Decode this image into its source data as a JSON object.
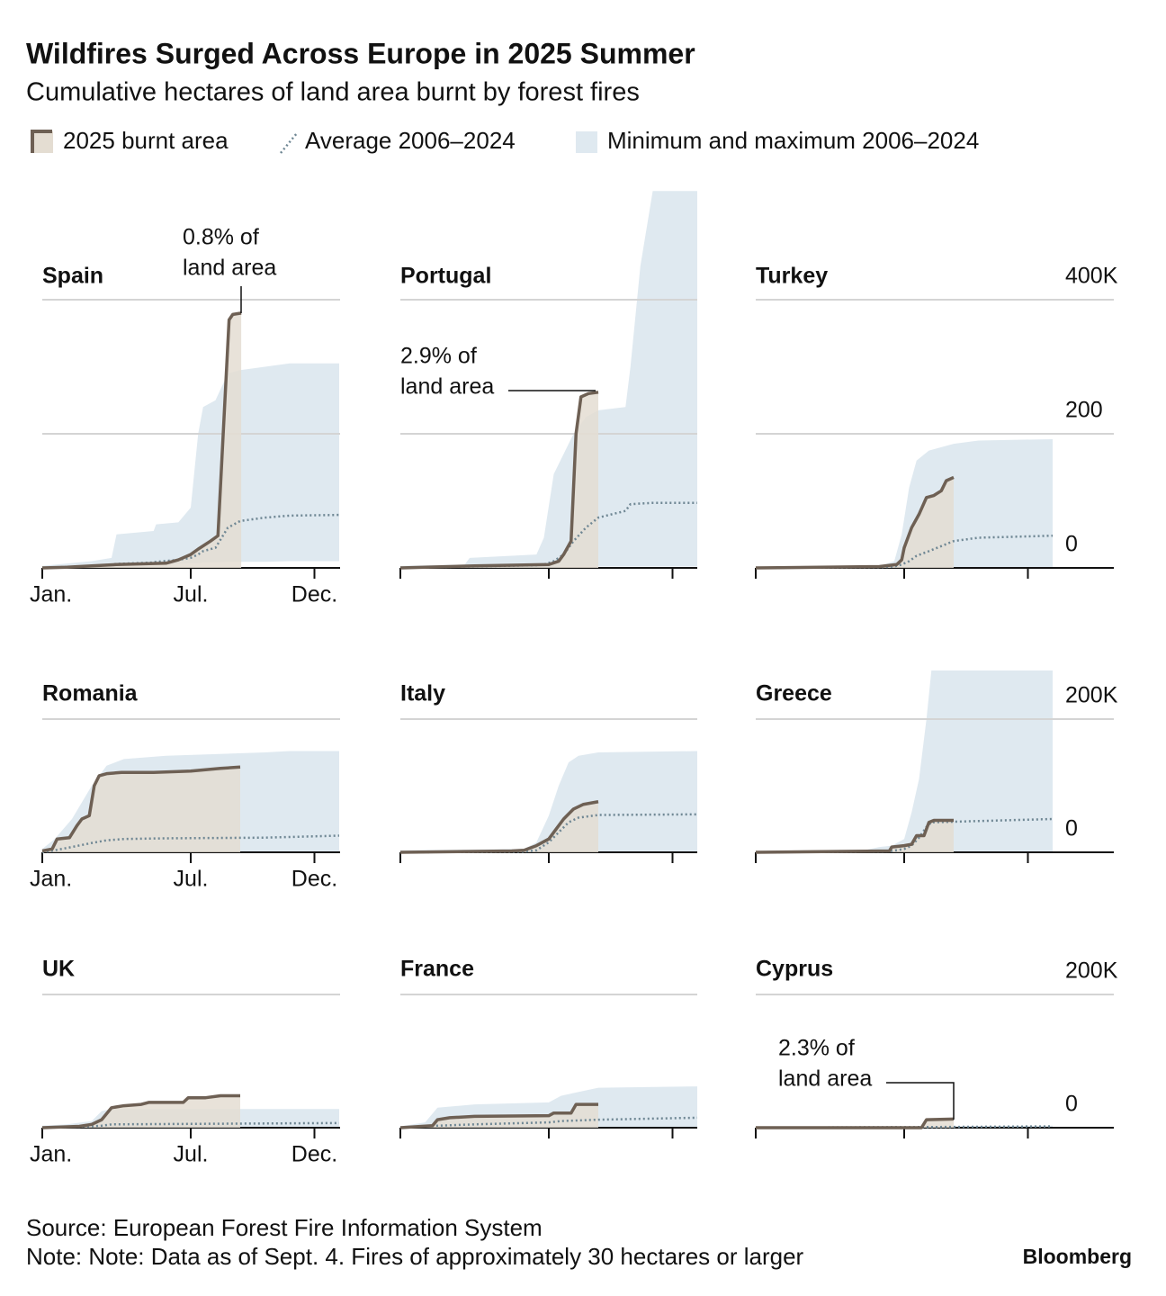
{
  "chart_data": {
    "type": "line",
    "title": "Wildfires Surged Across Europe in 2025 Summer",
    "subtitle": "Cumulative hectares of land area burnt by forest fires",
    "series": [
      {
        "name": "2025 burnt area",
        "color": "#6e6054",
        "fill": "#e4ddd2"
      },
      {
        "name": "Average 2006–2024",
        "color": "#6f8794"
      },
      {
        "name": "Minimum and maximum 2006–2024",
        "color": "#dfe9f0"
      }
    ],
    "xlim": [
      0,
      12
    ],
    "xticks": [
      {
        "value": 0,
        "label": "Jan."
      },
      {
        "value": 6,
        "label": "Jul."
      },
      {
        "value": 11,
        "label": "Dec."
      }
    ],
    "rows": [
      {
        "ylim": [
          0,
          400000
        ],
        "yticks": [
          0,
          {
            "value": 200000,
            "label": "200"
          },
          {
            "value": 400000,
            "label": "400K"
          }
        ],
        "panels": [
          {
            "name": "Spain",
            "annotation": [
              "0.8% of",
              "land area"
            ],
            "x": [
              0,
              1,
              2,
              3,
              4,
              5,
              5.5,
              6,
              6.3,
              6.8,
              7.1,
              7.55,
              7.7,
              8.04
            ],
            "values": [
              0,
              1000,
              3000,
              5000,
              6000,
              7000,
              12000,
              20000,
              28000,
              40000,
              48000,
              370000,
              378000,
              380000
            ],
            "hist_x": [
              0,
              2,
              2.8,
              3,
              4.5,
              4.6,
              5.5,
              6,
              6.3,
              6.5,
              7,
              7.5,
              8,
              9,
              10,
              12
            ],
            "max": [
              3000,
              10000,
              15000,
              50000,
              55000,
              65000,
              68000,
              90000,
              200000,
              240000,
              250000,
              290000,
              295000,
              300000,
              305000,
              305000
            ],
            "min": [
              0,
              2000,
              3000,
              4000,
              5000,
              5000,
              6000,
              7000,
              7000,
              8000,
              8000,
              9000,
              9000,
              9000,
              10000,
              10000
            ],
            "average": [
              0,
              3000,
              5000,
              6000,
              8000,
              9000,
              12000,
              15000,
              20000,
              25000,
              30000,
              60000,
              70000,
              75000,
              78000,
              79000
            ]
          },
          {
            "name": "Portugal",
            "annotation": [
              "2.9% of",
              "land area"
            ],
            "x": [
              0,
              3,
              6,
              6.4,
              6.6,
              6.9,
              7.1,
              7.3,
              7.6,
              8
            ],
            "values": [
              0,
              3000,
              5000,
              10000,
              20000,
              40000,
              200000,
              255000,
              260000,
              262000
            ],
            "hist_x": [
              0,
              2.6,
              2.8,
              5.5,
              5.8,
              6.2,
              6.6,
              7,
              7.5,
              8,
              9.1,
              9.3,
              9.7,
              10.2,
              12
            ],
            "max": [
              3000,
              5000,
              15000,
              20000,
              45000,
              140000,
              170000,
              200000,
              225000,
              235000,
              240000,
              300000,
              450000,
              562000,
              562000
            ],
            "min": [
              0,
              1000,
              1000,
              1000,
              1000,
              1000,
              2000,
              2000,
              2000,
              2000,
              2000,
              2000,
              2000,
              2000,
              2000
            ],
            "average": [
              0,
              2000,
              2000,
              4000,
              5000,
              10000,
              20000,
              40000,
              60000,
              75000,
              85000,
              95000,
              96000,
              97000,
              97000
            ]
          },
          {
            "name": "Turkey",
            "x": [
              0,
              5,
              5.7,
              5.9,
              6,
              6.3,
              6.6,
              6.9,
              7.2,
              7.5,
              7.7,
              8
            ],
            "values": [
              0,
              2000,
              5000,
              12000,
              30000,
              60000,
              80000,
              105000,
              108000,
              115000,
              130000,
              135000
            ],
            "hist_x": [
              0,
              5,
              5.6,
              5.9,
              6.2,
              6.5,
              7,
              8,
              9,
              12
            ],
            "max": [
              1000,
              3000,
              10000,
              50000,
              120000,
              160000,
              175000,
              185000,
              190000,
              192000
            ],
            "min": [
              0,
              0,
              0,
              0,
              0,
              0,
              0,
              0,
              0,
              0
            ],
            "average": [
              0,
              1000,
              2000,
              5000,
              10000,
              18000,
              25000,
              40000,
              45000,
              48000
            ]
          }
        ]
      },
      {
        "ylim": [
          0,
          200000
        ],
        "yticks": [
          0,
          {
            "value": 200000,
            "label": "200K"
          }
        ],
        "panels": [
          {
            "name": "Romania",
            "x": [
              0,
              0.4,
              0.6,
              1.1,
              1.4,
              1.6,
              1.9,
              2.1,
              2.3,
              2.6,
              3.2,
              4.5,
              6,
              6.6,
              7.2,
              8
            ],
            "values": [
              2000,
              5000,
              20000,
              22000,
              40000,
              50000,
              55000,
              100000,
              115000,
              118000,
              120000,
              120000,
              122000,
              124000,
              126000,
              128000
            ],
            "hist_x": [
              0,
              0.5,
              1.2,
              2,
              2.6,
              3.3,
              5,
              9,
              10,
              12
            ],
            "max": [
              5000,
              20000,
              50000,
              100000,
              130000,
              140000,
              145000,
              150000,
              152000,
              152000
            ],
            "min": [
              0,
              0,
              0,
              0,
              0,
              0,
              0,
              0,
              0,
              0
            ],
            "average": [
              0,
              3000,
              8000,
              14000,
              18000,
              20000,
              21000,
              22000,
              23000,
              25000
            ]
          },
          {
            "name": "Italy",
            "x": [
              0,
              4.5,
              5,
              5.5,
              6,
              6.3,
              6.6,
              7,
              7.4,
              8
            ],
            "values": [
              0,
              2000,
              3000,
              10000,
              20000,
              35000,
              50000,
              65000,
              72000,
              76000
            ],
            "hist_x": [
              0,
              5,
              5.5,
              6,
              6.4,
              6.8,
              7.2,
              8,
              12
            ],
            "max": [
              3000,
              5000,
              15000,
              55000,
              100000,
              135000,
              145000,
              150000,
              152000
            ],
            "min": [
              0,
              0,
              0,
              0,
              0,
              0,
              0,
              0,
              0
            ],
            "average": [
              0,
              1000,
              3000,
              15000,
              30000,
              45000,
              52000,
              56000,
              57000
            ]
          },
          {
            "name": "Greece",
            "x": [
              0,
              5.4,
              5.5,
              6,
              6.3,
              6.5,
              6.8,
              7,
              7.2,
              8
            ],
            "values": [
              0,
              2000,
              8000,
              10000,
              12000,
              25000,
              25000,
              45000,
              48000,
              48000
            ],
            "hist_x": [
              0,
              4.5,
              5,
              5.5,
              6,
              6.3,
              6.6,
              6.9,
              7.1,
              12
            ],
            "max": [
              2000,
              4000,
              8000,
              10000,
              20000,
              60000,
              110000,
              200000,
              273000,
              273000
            ],
            "min": [
              0,
              0,
              0,
              0,
              0,
              0,
              0,
              0,
              0,
              0
            ],
            "average": [
              0,
              1000,
              1000,
              2000,
              5000,
              10000,
              22000,
              38000,
              45000,
              50000
            ]
          }
        ]
      },
      {
        "ylim": [
          0,
          200000
        ],
        "yticks": [
          0,
          {
            "value": 200000,
            "label": "200K"
          }
        ],
        "panels": [
          {
            "name": "UK",
            "x": [
              0,
              1.5,
              2,
              2.4,
              2.8,
              3.3,
              4,
              4.3,
              5.7,
              5.9,
              6.6,
              7.2,
              8
            ],
            "values": [
              0,
              2000,
              5000,
              12000,
              30000,
              33000,
              35000,
              38000,
              38000,
              45000,
              45000,
              48000,
              48000
            ],
            "hist_x": [
              0,
              1,
              2,
              2.4,
              2.8,
              12
            ],
            "max": [
              3000,
              5000,
              10000,
              25000,
              28000,
              28000
            ],
            "min": [
              0,
              0,
              0,
              0,
              0,
              0
            ],
            "average": [
              0,
              1000,
              2000,
              3000,
              5000,
              7000
            ]
          },
          {
            "name": "France",
            "x": [
              0,
              1.3,
              1.5,
              2,
              3,
              6,
              6.2,
              6.9,
              7.1,
              8
            ],
            "values": [
              0,
              3000,
              12000,
              15000,
              17000,
              18000,
              22000,
              22000,
              35000,
              35000
            ],
            "hist_x": [
              0,
              1,
              1.5,
              3,
              6,
              6.5,
              8,
              12
            ],
            "max": [
              2000,
              8000,
              30000,
              35000,
              38000,
              48000,
              60000,
              62000
            ],
            "min": [
              0,
              0,
              0,
              0,
              0,
              0,
              0,
              0
            ],
            "average": [
              0,
              2000,
              3000,
              5000,
              8000,
              10000,
              12000,
              15000
            ]
          },
          {
            "name": "Cyprus",
            "annotation": [
              "2.3% of",
              "land area"
            ],
            "x": [
              0,
              6.7,
              6.9,
              8
            ],
            "values": [
              0,
              0,
              12000,
              13000
            ],
            "hist_x": [
              0,
              7,
              12
            ],
            "max": [
              500,
              2000,
              3000
            ],
            "min": [
              0,
              0,
              0
            ],
            "average": [
              0,
              1000,
              2000
            ]
          }
        ]
      }
    ],
    "source": "Source: European Forest Fire Information System",
    "note": "Note: Note: Data as of Sept. 4. Fires of approximately 30 hectares or larger",
    "brand": "Bloomberg"
  }
}
